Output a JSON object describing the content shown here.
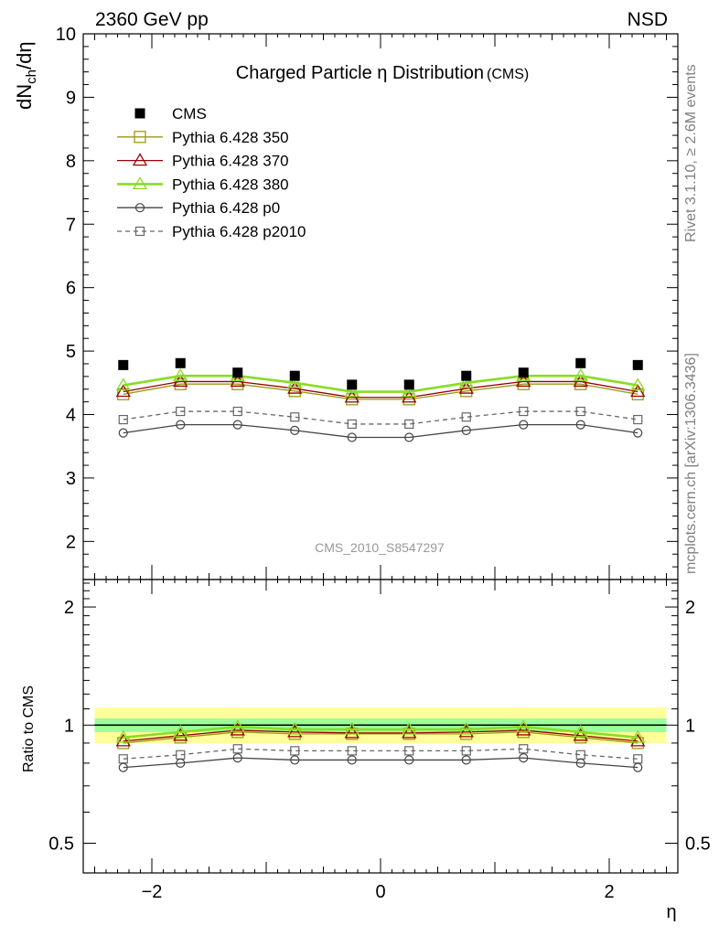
{
  "header": {
    "left": "2360 GeV pp",
    "right": "NSD"
  },
  "side_labels": {
    "rivet": "Rivet 3.1.10, ≥ 2.6M events",
    "mcplots": "mcplots.cern.ch [arXiv:1306.3436]"
  },
  "chart_data": [
    {
      "type": "line",
      "title": "Charged Particle η Distribution",
      "title_suffix": "(CMS)",
      "ylabel": "dN_ch/dη",
      "analysis_label": "CMS_2010_S8547297",
      "x": [
        -2.25,
        -1.75,
        -1.25,
        -0.75,
        -0.25,
        0.25,
        0.75,
        1.25,
        1.75,
        2.25
      ],
      "xlim": [
        -2.6,
        2.6
      ],
      "ylim": [
        1.4,
        10
      ],
      "yticks": [
        2,
        3,
        4,
        5,
        6,
        7,
        8,
        9,
        10
      ],
      "series": [
        {
          "name": "CMS",
          "marker": "filled-square",
          "color": "#000000",
          "line": "none",
          "values": [
            4.78,
            4.81,
            4.66,
            4.61,
            4.47,
            4.47,
            4.61,
            4.66,
            4.81,
            4.78
          ]
        },
        {
          "name": "Pythia 6.428 350",
          "marker": "open-square",
          "color": "#9a9a1a",
          "line": "solid",
          "values": [
            4.32,
            4.48,
            4.48,
            4.37,
            4.24,
            4.24,
            4.37,
            4.48,
            4.48,
            4.32
          ]
        },
        {
          "name": "Pythia 6.428 370",
          "marker": "open-triangle",
          "color": "#990000",
          "line": "solid",
          "values": [
            4.36,
            4.52,
            4.52,
            4.41,
            4.27,
            4.27,
            4.41,
            4.52,
            4.52,
            4.36
          ]
        },
        {
          "name": "Pythia 6.428 380",
          "marker": "open-triangle",
          "color": "#88dd22",
          "line": "solid-thick",
          "values": [
            4.46,
            4.61,
            4.61,
            4.5,
            4.36,
            4.36,
            4.5,
            4.61,
            4.61,
            4.46
          ]
        },
        {
          "name": "Pythia 6.428 p0",
          "marker": "open-circle",
          "color": "#444444",
          "line": "solid",
          "values": [
            3.71,
            3.84,
            3.84,
            3.75,
            3.64,
            3.64,
            3.75,
            3.84,
            3.84,
            3.71
          ]
        },
        {
          "name": "Pythia 6.428 p2010",
          "marker": "open-square-small",
          "color": "#666666",
          "line": "dashed",
          "values": [
            3.92,
            4.05,
            4.05,
            3.96,
            3.85,
            3.85,
            3.96,
            4.05,
            4.05,
            3.92
          ]
        }
      ]
    },
    {
      "type": "line",
      "ylabel": "Ratio to CMS",
      "xlabel": "η",
      "x": [
        -2.25,
        -1.75,
        -1.25,
        -0.75,
        -0.25,
        0.25,
        0.75,
        1.25,
        1.75,
        2.25
      ],
      "xlim": [
        -2.6,
        2.6
      ],
      "xticks": [
        -2,
        0,
        2
      ],
      "xticklabels": [
        "−2",
        "0",
        "2"
      ],
      "ylim": [
        0.42,
        2.35
      ],
      "log_scale_y": true,
      "yticks": [
        0.5,
        1,
        2
      ],
      "yticklabels": [
        "0.5",
        "1",
        "2"
      ],
      "bands": [
        {
          "name": "total-uncertainty",
          "color": "#ffff88",
          "lower": 0.9,
          "upper": 1.11
        },
        {
          "name": "stat-uncertainty",
          "color": "#88ff99",
          "lower": 0.96,
          "upper": 1.04
        }
      ],
      "series": [
        {
          "name": "Pythia 6.428 350",
          "values": [
            0.9,
            0.93,
            0.96,
            0.95,
            0.95,
            0.95,
            0.95,
            0.96,
            0.93,
            0.9
          ]
        },
        {
          "name": "Pythia 6.428 370",
          "values": [
            0.91,
            0.94,
            0.97,
            0.96,
            0.955,
            0.955,
            0.96,
            0.97,
            0.94,
            0.91
          ]
        },
        {
          "name": "Pythia 6.428 380",
          "values": [
            0.93,
            0.96,
            0.99,
            0.975,
            0.975,
            0.975,
            0.975,
            0.99,
            0.96,
            0.93
          ]
        },
        {
          "name": "Pythia 6.428 p0",
          "values": [
            0.78,
            0.8,
            0.825,
            0.815,
            0.815,
            0.815,
            0.815,
            0.825,
            0.8,
            0.78
          ]
        },
        {
          "name": "Pythia 6.428 p2010",
          "values": [
            0.82,
            0.84,
            0.87,
            0.86,
            0.86,
            0.86,
            0.86,
            0.87,
            0.84,
            0.82
          ]
        }
      ]
    }
  ]
}
